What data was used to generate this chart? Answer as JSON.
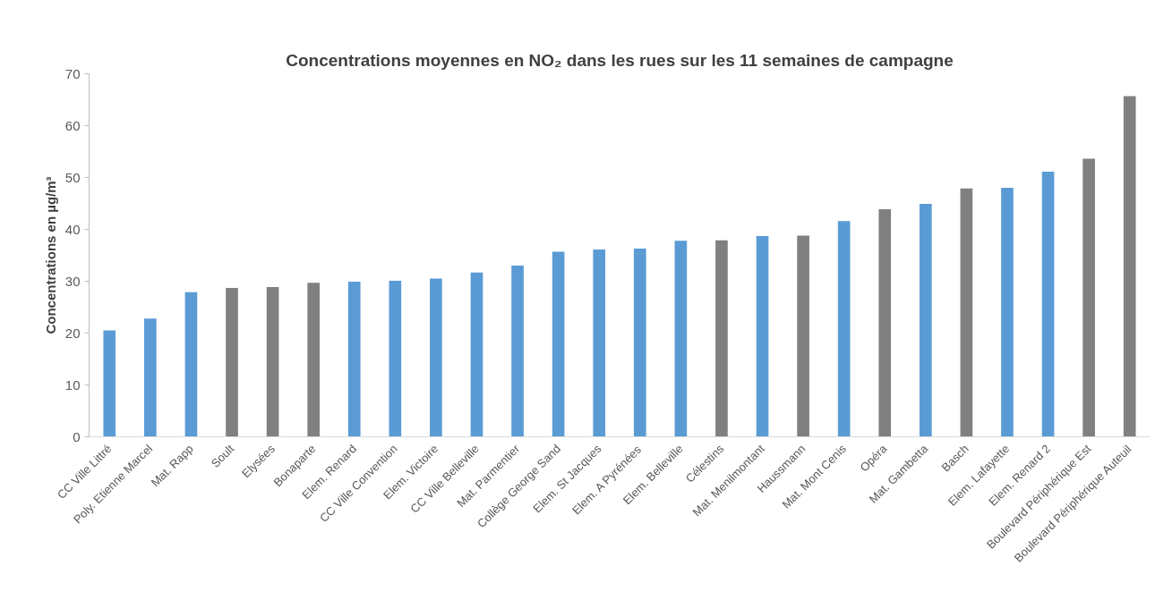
{
  "chart_data": {
    "type": "bar",
    "title": "Concentrations moyennes en NO₂ dans les rues sur les 11 semaines de campagne",
    "ylabel": "Concentrations en µg/m³",
    "categories": [
      "CC Ville Littré",
      "Poly. Etienne Marcel",
      "Mat. Rapp",
      "Soult",
      "Elysées",
      "Bonaparte",
      "Elem. Renard",
      "CC Ville Convention",
      "Elem. Victoire",
      "CC Ville Belleville",
      "Mat. Parmentier",
      "Collège George Sand",
      "Elem. St Jacques",
      "Elem. A Pyrénées",
      "Elem. Belleville",
      "Célestins",
      "Mat. Menilmontant",
      "Haussmann",
      "Mat. Mont Cenis",
      "Opéra",
      "Mat. Gambetta",
      "Basch",
      "Elem. Lafayette",
      "Elem. Renard 2",
      "Boulevard Périphérique Est",
      "Boulevard Périphérique Auteuil"
    ],
    "values": [
      20.5,
      22.8,
      27.9,
      28.7,
      28.9,
      29.7,
      29.9,
      30.1,
      30.5,
      31.7,
      33.0,
      35.7,
      36.1,
      36.3,
      37.8,
      37.9,
      38.7,
      38.8,
      41.6,
      43.9,
      44.9,
      47.9,
      48.0,
      51.1,
      53.6,
      65.7
    ],
    "colors": [
      "#5b9bd5",
      "#5b9bd5",
      "#5b9bd5",
      "#808080",
      "#808080",
      "#808080",
      "#5b9bd5",
      "#5b9bd5",
      "#5b9bd5",
      "#5b9bd5",
      "#5b9bd5",
      "#5b9bd5",
      "#5b9bd5",
      "#5b9bd5",
      "#5b9bd5",
      "#808080",
      "#5b9bd5",
      "#808080",
      "#5b9bd5",
      "#808080",
      "#5b9bd5",
      "#808080",
      "#5b9bd5",
      "#5b9bd5",
      "#808080",
      "#808080"
    ],
    "ylim": [
      0,
      70
    ],
    "yticks": [
      0,
      10,
      20,
      30,
      40,
      50,
      60,
      70
    ]
  }
}
